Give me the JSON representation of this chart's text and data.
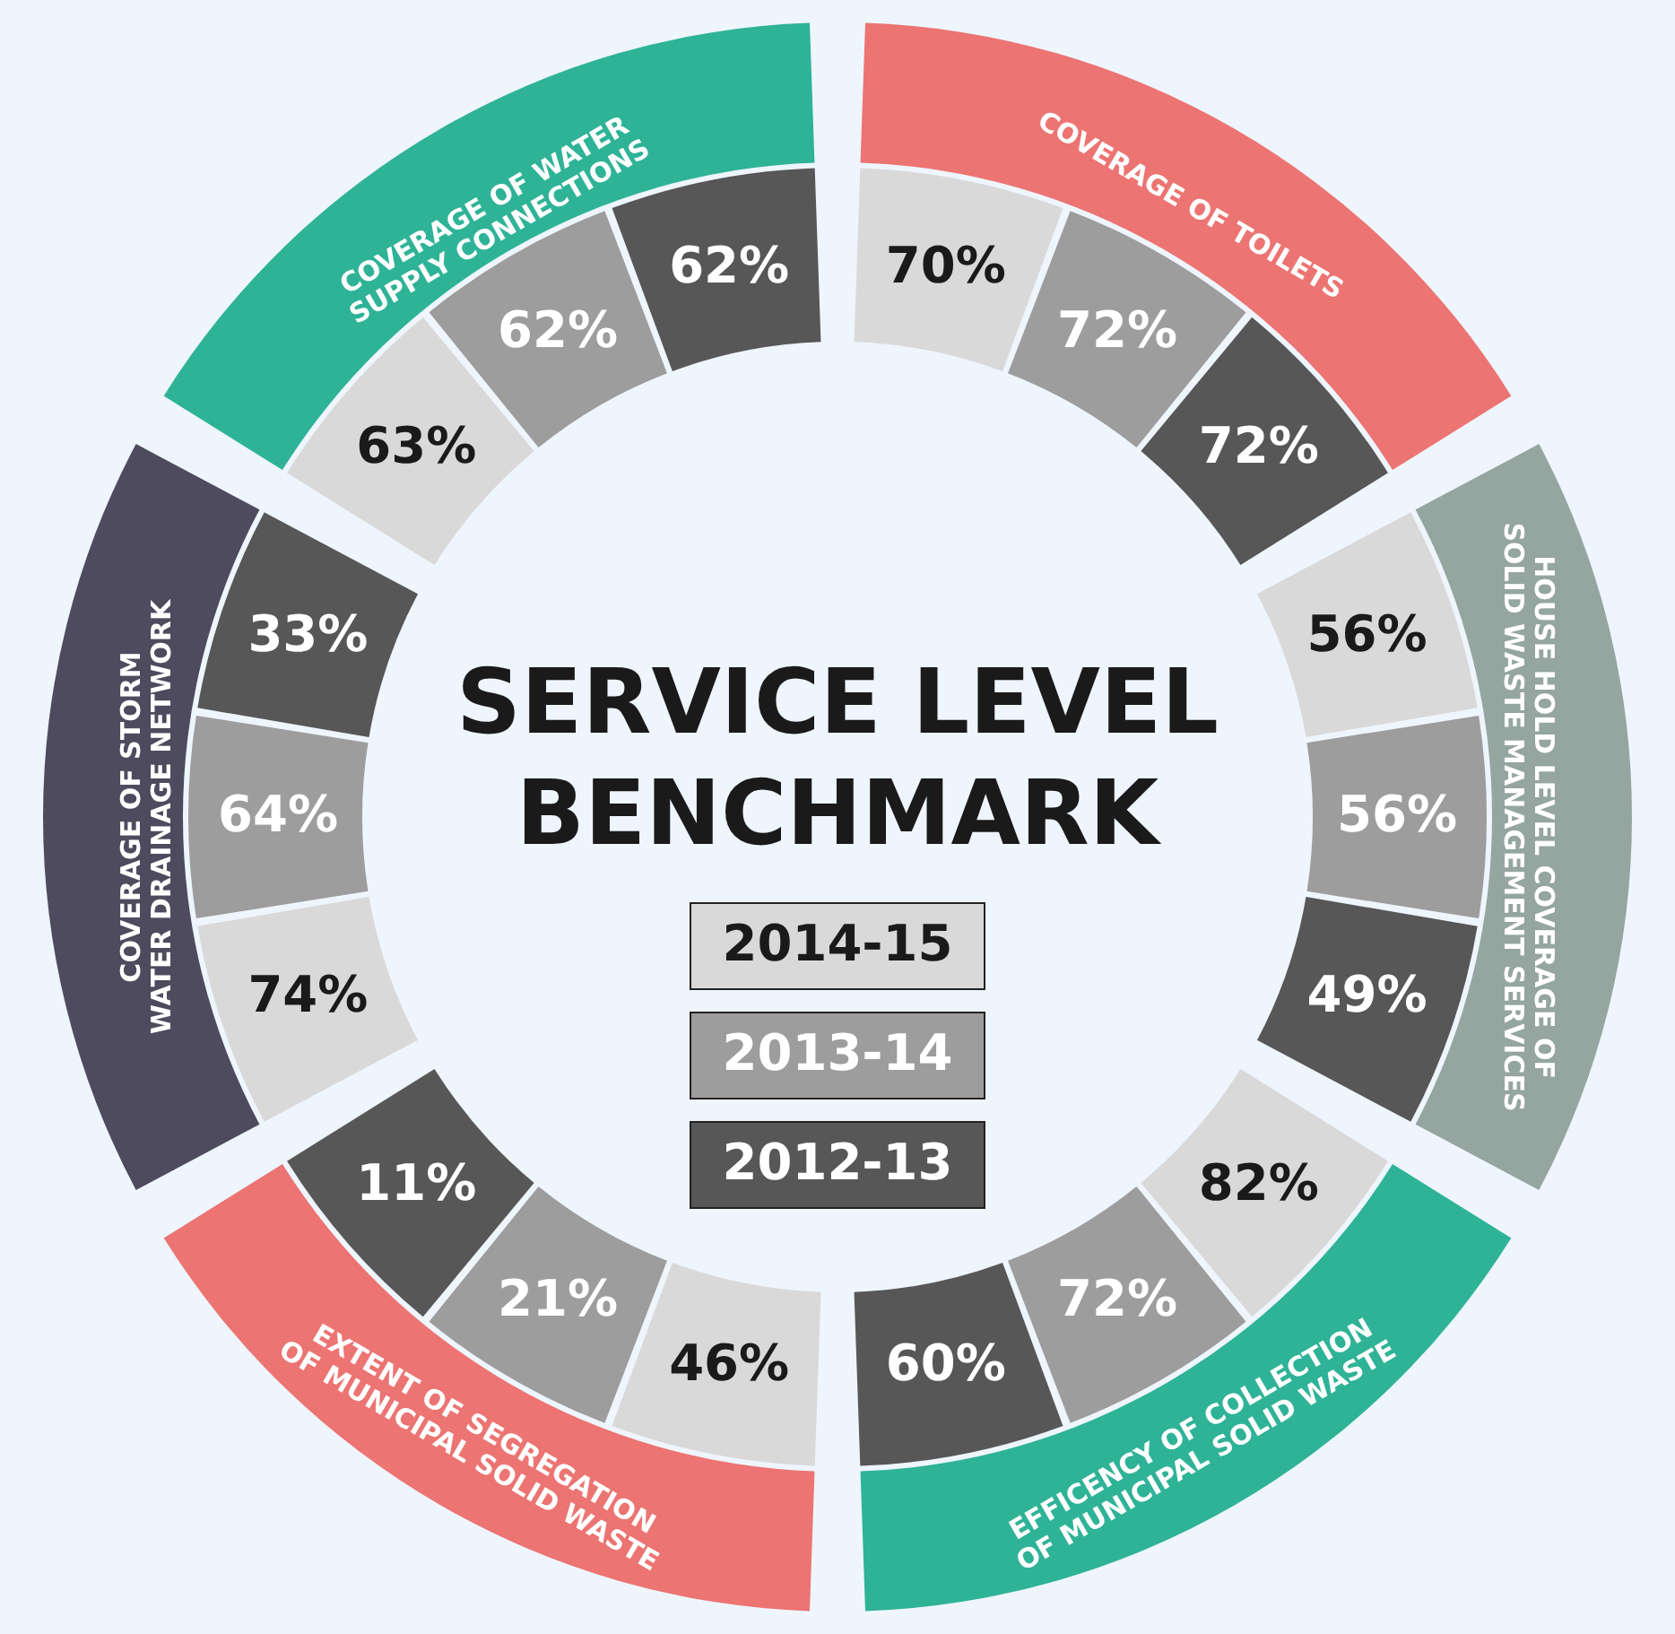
{
  "chart_data": {
    "type": "other",
    "title": "SERVICE LEVEL BENCHMARK",
    "categories": [
      "COVERAGE OF TOILETS",
      "HOUSE HOLD LEVEL COVERAGE OF SOLID WASTE MANAGEMENT SERVICES",
      "EFFICENCY OF COLLECTION OF MUNICIPAL SOLID WASTE",
      "EXTENT OF SEGREGATION OF MUNICIPAL SOLID WASTE",
      "COVERAGE OF STORM WATER DRAINAGE NETWORK",
      "COVERAGE OF WATER SUPPLY CONNECTIONS"
    ],
    "colors": [
      "#ec7472",
      "#95a5a0",
      "#2fb397",
      "#ec7472",
      "#4e4b5e",
      "#2fb397"
    ],
    "series": [
      {
        "name": "2014-15",
        "color": "#d9d9d9",
        "values": [
          70,
          56,
          82,
          46,
          74,
          63
        ],
        "value_labels": [
          "70%",
          "56%",
          "82%",
          "46%",
          "74%",
          "63%"
        ]
      },
      {
        "name": "2013-14",
        "color": "#9d9d9d",
        "values": [
          72,
          56,
          72,
          21,
          64,
          62
        ],
        "value_labels": [
          "72%",
          "56%",
          "72%",
          "21%",
          "64%",
          "62%"
        ]
      },
      {
        "name": "2012-13",
        "color": "#575757",
        "values": [
          72,
          49,
          60,
          11,
          33,
          62
        ],
        "value_labels": [
          "72%",
          "49%",
          "60%",
          "11%",
          "33%",
          "62%"
        ]
      }
    ]
  }
}
